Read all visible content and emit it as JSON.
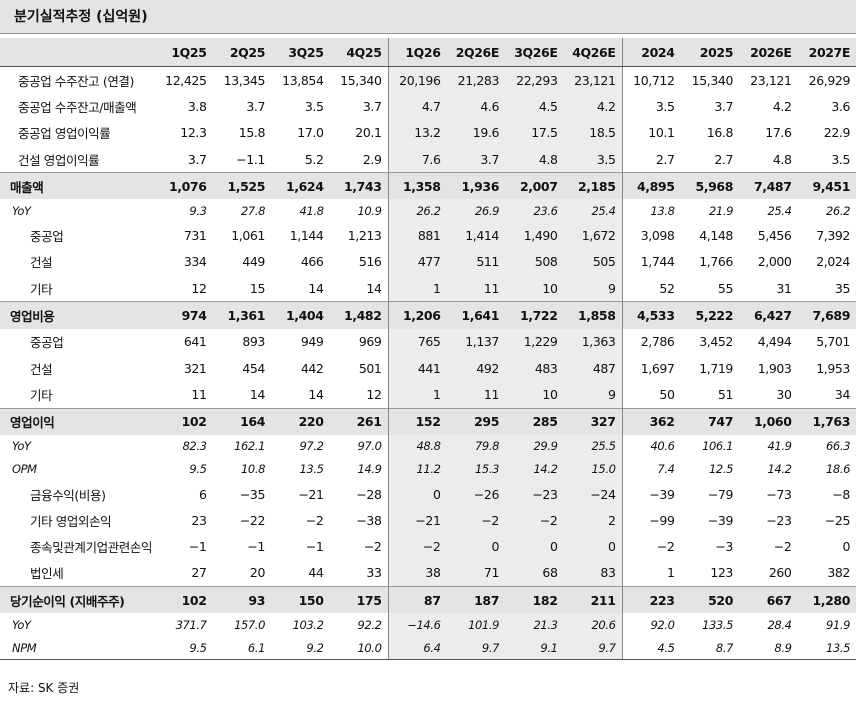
{
  "title": "분기실적추정 (십억원)",
  "table": {
    "header": [
      "1Q25",
      "2Q25",
      "3Q25",
      "4Q25",
      "1Q26",
      "2Q26E",
      "3Q26E",
      "4Q26E",
      "2024",
      "2025",
      "2026E",
      "2027E"
    ],
    "rows": [
      {
        "label": "중공업 수주잔고 (연결)",
        "cells": [
          "12,425",
          "13,345",
          "13,854",
          "15,340",
          "20,196",
          "21,283",
          "22,293",
          "23,121",
          "10,712",
          "15,340",
          "23,121",
          "26,929"
        ]
      },
      {
        "label": "중공업 수주잔고/매출액",
        "cells": [
          "3.8",
          "3.7",
          "3.5",
          "3.7",
          "4.7",
          "4.6",
          "4.5",
          "4.2",
          "3.5",
          "3.7",
          "4.2",
          "3.6"
        ]
      },
      {
        "label": "중공업 영업이익률",
        "cells": [
          "12.3",
          "15.8",
          "17.0",
          "20.1",
          "13.2",
          "19.6",
          "17.5",
          "18.5",
          "10.1",
          "16.8",
          "17.6",
          "22.9"
        ]
      },
      {
        "label": "건설  영업이익률",
        "cells": [
          "3.7",
          "−1.1",
          "5.2",
          "2.9",
          "7.6",
          "3.7",
          "4.8",
          "3.5",
          "2.7",
          "2.7",
          "4.8",
          "3.5"
        ]
      },
      {
        "label": "매출액",
        "cells": [
          "1,076",
          "1,525",
          "1,624",
          "1,743",
          "1,358",
          "1,936",
          "2,007",
          "2,185",
          "4,895",
          "5,968",
          "7,487",
          "9,451"
        ]
      },
      {
        "label": "YoY",
        "cells": [
          "9.3",
          "27.8",
          "41.8",
          "10.9",
          "26.2",
          "26.9",
          "23.6",
          "25.4",
          "13.8",
          "21.9",
          "25.4",
          "26.2"
        ]
      },
      {
        "label": "중공업",
        "cells": [
          "731",
          "1,061",
          "1,144",
          "1,213",
          "881",
          "1,414",
          "1,490",
          "1,672",
          "3,098",
          "4,148",
          "5,456",
          "7,392"
        ]
      },
      {
        "label": "건설",
        "cells": [
          "334",
          "449",
          "466",
          "516",
          "477",
          "511",
          "508",
          "505",
          "1,744",
          "1,766",
          "2,000",
          "2,024"
        ]
      },
      {
        "label": "기타",
        "cells": [
          "12",
          "15",
          "14",
          "14",
          "1",
          "11",
          "10",
          "9",
          "52",
          "55",
          "31",
          "35"
        ]
      },
      {
        "label": "영업비용",
        "cells": [
          "974",
          "1,361",
          "1,404",
          "1,482",
          "1,206",
          "1,641",
          "1,722",
          "1,858",
          "4,533",
          "5,222",
          "6,427",
          "7,689"
        ]
      },
      {
        "label": "중공업",
        "cells": [
          "641",
          "893",
          "949",
          "969",
          "765",
          "1,137",
          "1,229",
          "1,363",
          "2,786",
          "3,452",
          "4,494",
          "5,701"
        ]
      },
      {
        "label": "건설",
        "cells": [
          "321",
          "454",
          "442",
          "501",
          "441",
          "492",
          "483",
          "487",
          "1,697",
          "1,719",
          "1,903",
          "1,953"
        ]
      },
      {
        "label": "기타",
        "cells": [
          "11",
          "14",
          "14",
          "12",
          "1",
          "11",
          "10",
          "9",
          "50",
          "51",
          "30",
          "34"
        ]
      },
      {
        "label": "영업이익",
        "cells": [
          "102",
          "164",
          "220",
          "261",
          "152",
          "295",
          "285",
          "327",
          "362",
          "747",
          "1,060",
          "1,763"
        ]
      },
      {
        "label": "YoY",
        "cells": [
          "82.3",
          "162.1",
          "97.2",
          "97.0",
          "48.8",
          "79.8",
          "29.9",
          "25.5",
          "40.6",
          "106.1",
          "41.9",
          "66.3"
        ]
      },
      {
        "label": "OPM",
        "cells": [
          "9.5",
          "10.8",
          "13.5",
          "14.9",
          "11.2",
          "15.3",
          "14.2",
          "15.0",
          "7.4",
          "12.5",
          "14.2",
          "18.6"
        ]
      },
      {
        "label": "금융수익(비용)",
        "cells": [
          "6",
          "−35",
          "−21",
          "−28",
          "0",
          "−26",
          "−23",
          "−24",
          "−39",
          "−79",
          "−73",
          "−8"
        ]
      },
      {
        "label": "기타 영업외손익",
        "cells": [
          "23",
          "−22",
          "−2",
          "−38",
          "−21",
          "−2",
          "−2",
          "2",
          "−99",
          "−39",
          "−23",
          "−25"
        ]
      },
      {
        "label": "종속및관계기업관련손익",
        "cells": [
          "−1",
          "−1",
          "−1",
          "−2",
          "−2",
          "0",
          "0",
          "0",
          "−2",
          "−3",
          "−2",
          "0"
        ]
      },
      {
        "label": "법인세",
        "cells": [
          "27",
          "20",
          "44",
          "33",
          "38",
          "71",
          "68",
          "83",
          "1",
          "123",
          "260",
          "382"
        ]
      },
      {
        "label": "당기순이익 (지배주주)",
        "cells": [
          "102",
          "93",
          "150",
          "175",
          "87",
          "187",
          "182",
          "211",
          "223",
          "520",
          "667",
          "1,280"
        ]
      },
      {
        "label": "YoY",
        "cells": [
          "371.7",
          "157.0",
          "103.2",
          "92.2",
          "−14.6",
          "101.9",
          "21.3",
          "20.6",
          "92.0",
          "133.5",
          "28.4",
          "91.9"
        ]
      },
      {
        "label": "NPM",
        "cells": [
          "9.5",
          "6.1",
          "9.2",
          "10.0",
          "6.4",
          "9.7",
          "9.1",
          "9.7",
          "4.5",
          "8.7",
          "8.9",
          "13.5"
        ]
      }
    ]
  },
  "source": "자료: SK 증권"
}
